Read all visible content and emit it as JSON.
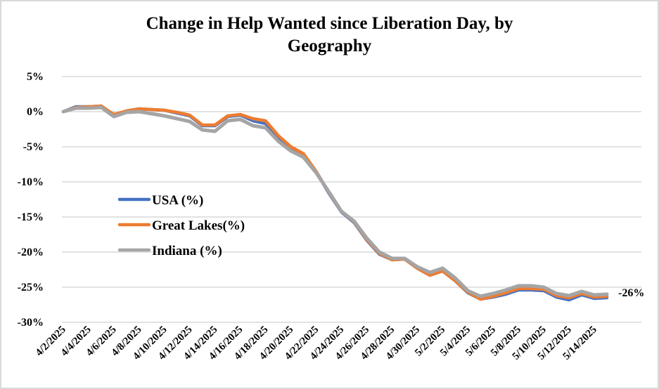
{
  "chart_data": {
    "type": "line",
    "title": "Change in Help Wanted since Liberation Day, by Geography",
    "title_lines": [
      "Change in Help Wanted since Liberation Day, by",
      "Geography"
    ],
    "xlabel": "",
    "ylabel": "",
    "ylim": [
      -30,
      5
    ],
    "yticks": [
      5,
      0,
      -5,
      -10,
      -15,
      -20,
      -25,
      -30
    ],
    "ytick_labels": [
      "5%",
      "0%",
      "-5%",
      "-10%",
      "-15%",
      "-20%",
      "-25%",
      "-30%"
    ],
    "grid": true,
    "legend_position": "center-left",
    "x": [
      "4/2/2025",
      "4/3/2025",
      "4/4/2025",
      "4/5/2025",
      "4/6/2025",
      "4/7/2025",
      "4/8/2025",
      "4/9/2025",
      "4/10/2025",
      "4/11/2025",
      "4/12/2025",
      "4/13/2025",
      "4/14/2025",
      "4/15/2025",
      "4/16/2025",
      "4/17/2025",
      "4/18/2025",
      "4/19/2025",
      "4/20/2025",
      "4/21/2025",
      "4/22/2025",
      "4/23/2025",
      "4/24/2025",
      "4/25/2025",
      "4/26/2025",
      "4/27/2025",
      "4/28/2025",
      "4/29/2025",
      "4/30/2025",
      "5/1/2025",
      "5/2/2025",
      "5/3/2025",
      "5/4/2025",
      "5/5/2025",
      "5/6/2025",
      "5/7/2025",
      "5/8/2025",
      "5/9/2025",
      "5/10/2025",
      "5/11/2025",
      "5/12/2025",
      "5/13/2025",
      "5/14/2025",
      "5/15/2025"
    ],
    "xtick_labels": [
      "4/2/2025",
      "4/4/2025",
      "4/6/2025",
      "4/8/2025",
      "4/10/2025",
      "4/12/2025",
      "4/14/2025",
      "4/16/2025",
      "4/18/2025",
      "4/20/2025",
      "4/22/2025",
      "4/24/2025",
      "4/26/2025",
      "4/28/2025",
      "4/30/2025",
      "5/2/2025",
      "5/4/2025",
      "5/6/2025",
      "5/8/2025",
      "5/10/2025",
      "5/12/2025",
      "5/14/2025"
    ],
    "series": [
      {
        "name": "USA (%)",
        "color": "#4472c4",
        "values": [
          0,
          0.7,
          0.7,
          0.8,
          -0.5,
          0.1,
          0.4,
          0.3,
          0.2,
          -0.2,
          -0.6,
          -2.0,
          -2.0,
          -0.7,
          -0.5,
          -1.3,
          -1.7,
          -3.8,
          -5.3,
          -6.2,
          -8.6,
          -11.6,
          -14.3,
          -15.8,
          -18.3,
          -20.3,
          -21.1,
          -21.0,
          -22.3,
          -23.3,
          -22.7,
          -24.1,
          -25.8,
          -26.7,
          -26.4,
          -26.0,
          -25.4,
          -25.4,
          -25.5,
          -26.4,
          -26.8,
          -26.1,
          -26.6,
          -26.5
        ]
      },
      {
        "name": "Great Lakes(%)",
        "color": "#ed7d31",
        "values": [
          0,
          0.6,
          0.7,
          0.8,
          -0.4,
          0.1,
          0.4,
          0.3,
          0.2,
          -0.1,
          -0.5,
          -1.9,
          -1.9,
          -0.6,
          -0.4,
          -1.0,
          -1.3,
          -3.4,
          -5.0,
          -6.0,
          -8.5,
          -11.5,
          -14.2,
          -15.7,
          -18.2,
          -20.2,
          -21.1,
          -21.0,
          -22.3,
          -23.3,
          -22.7,
          -24.1,
          -25.7,
          -26.7,
          -26.3,
          -25.8,
          -25.2,
          -25.2,
          -25.3,
          -26.2,
          -26.5,
          -25.9,
          -26.4,
          -26.3
        ]
      },
      {
        "name": "Indiana (%)",
        "color": "#a5a5a5",
        "values": [
          0,
          0.5,
          0.5,
          0.6,
          -0.7,
          -0.1,
          0.0,
          -0.3,
          -0.6,
          -1.0,
          -1.4,
          -2.6,
          -2.8,
          -1.3,
          -1.1,
          -2.0,
          -2.3,
          -4.2,
          -5.6,
          -6.5,
          -8.7,
          -11.4,
          -14.2,
          -15.6,
          -18.0,
          -20.0,
          -20.9,
          -20.9,
          -22.1,
          -22.9,
          -22.3,
          -23.7,
          -25.5,
          -26.3,
          -25.9,
          -25.4,
          -24.8,
          -24.8,
          -25.0,
          -25.9,
          -26.2,
          -25.6,
          -26.1,
          -26.0
        ]
      }
    ],
    "annotations": [
      {
        "text": "-26%",
        "x": "5/15/2025",
        "y": -26
      }
    ]
  }
}
